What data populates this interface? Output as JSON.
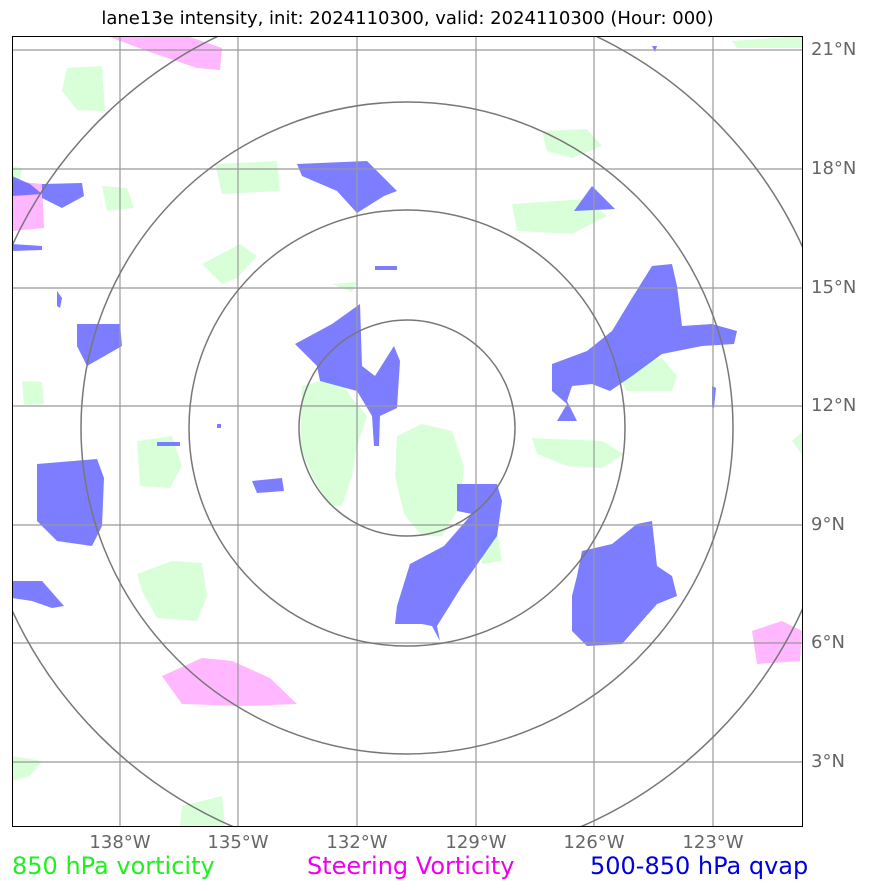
{
  "title": "lane13e intensity, init: 2024110300, valid: 2024110300 (Hour: 000)",
  "lat_labels": [
    "21°N",
    "18°N",
    "15°N",
    "12°N",
    "9°N",
    "6°N",
    "3°N"
  ],
  "lon_labels": [
    "138°W",
    "135°W",
    "132°W",
    "129°W",
    "126°W",
    "123°W"
  ],
  "legend": {
    "vort850": "850 hPa vorticity",
    "steering": "Steering Vorticity",
    "qvap": "500-850 hPa qvap"
  },
  "colors": {
    "vort850": "#ccffcc",
    "steering": "#ffaaff",
    "qvap": "#6666ff",
    "grid": "#999999",
    "rings": "#777777"
  }
}
